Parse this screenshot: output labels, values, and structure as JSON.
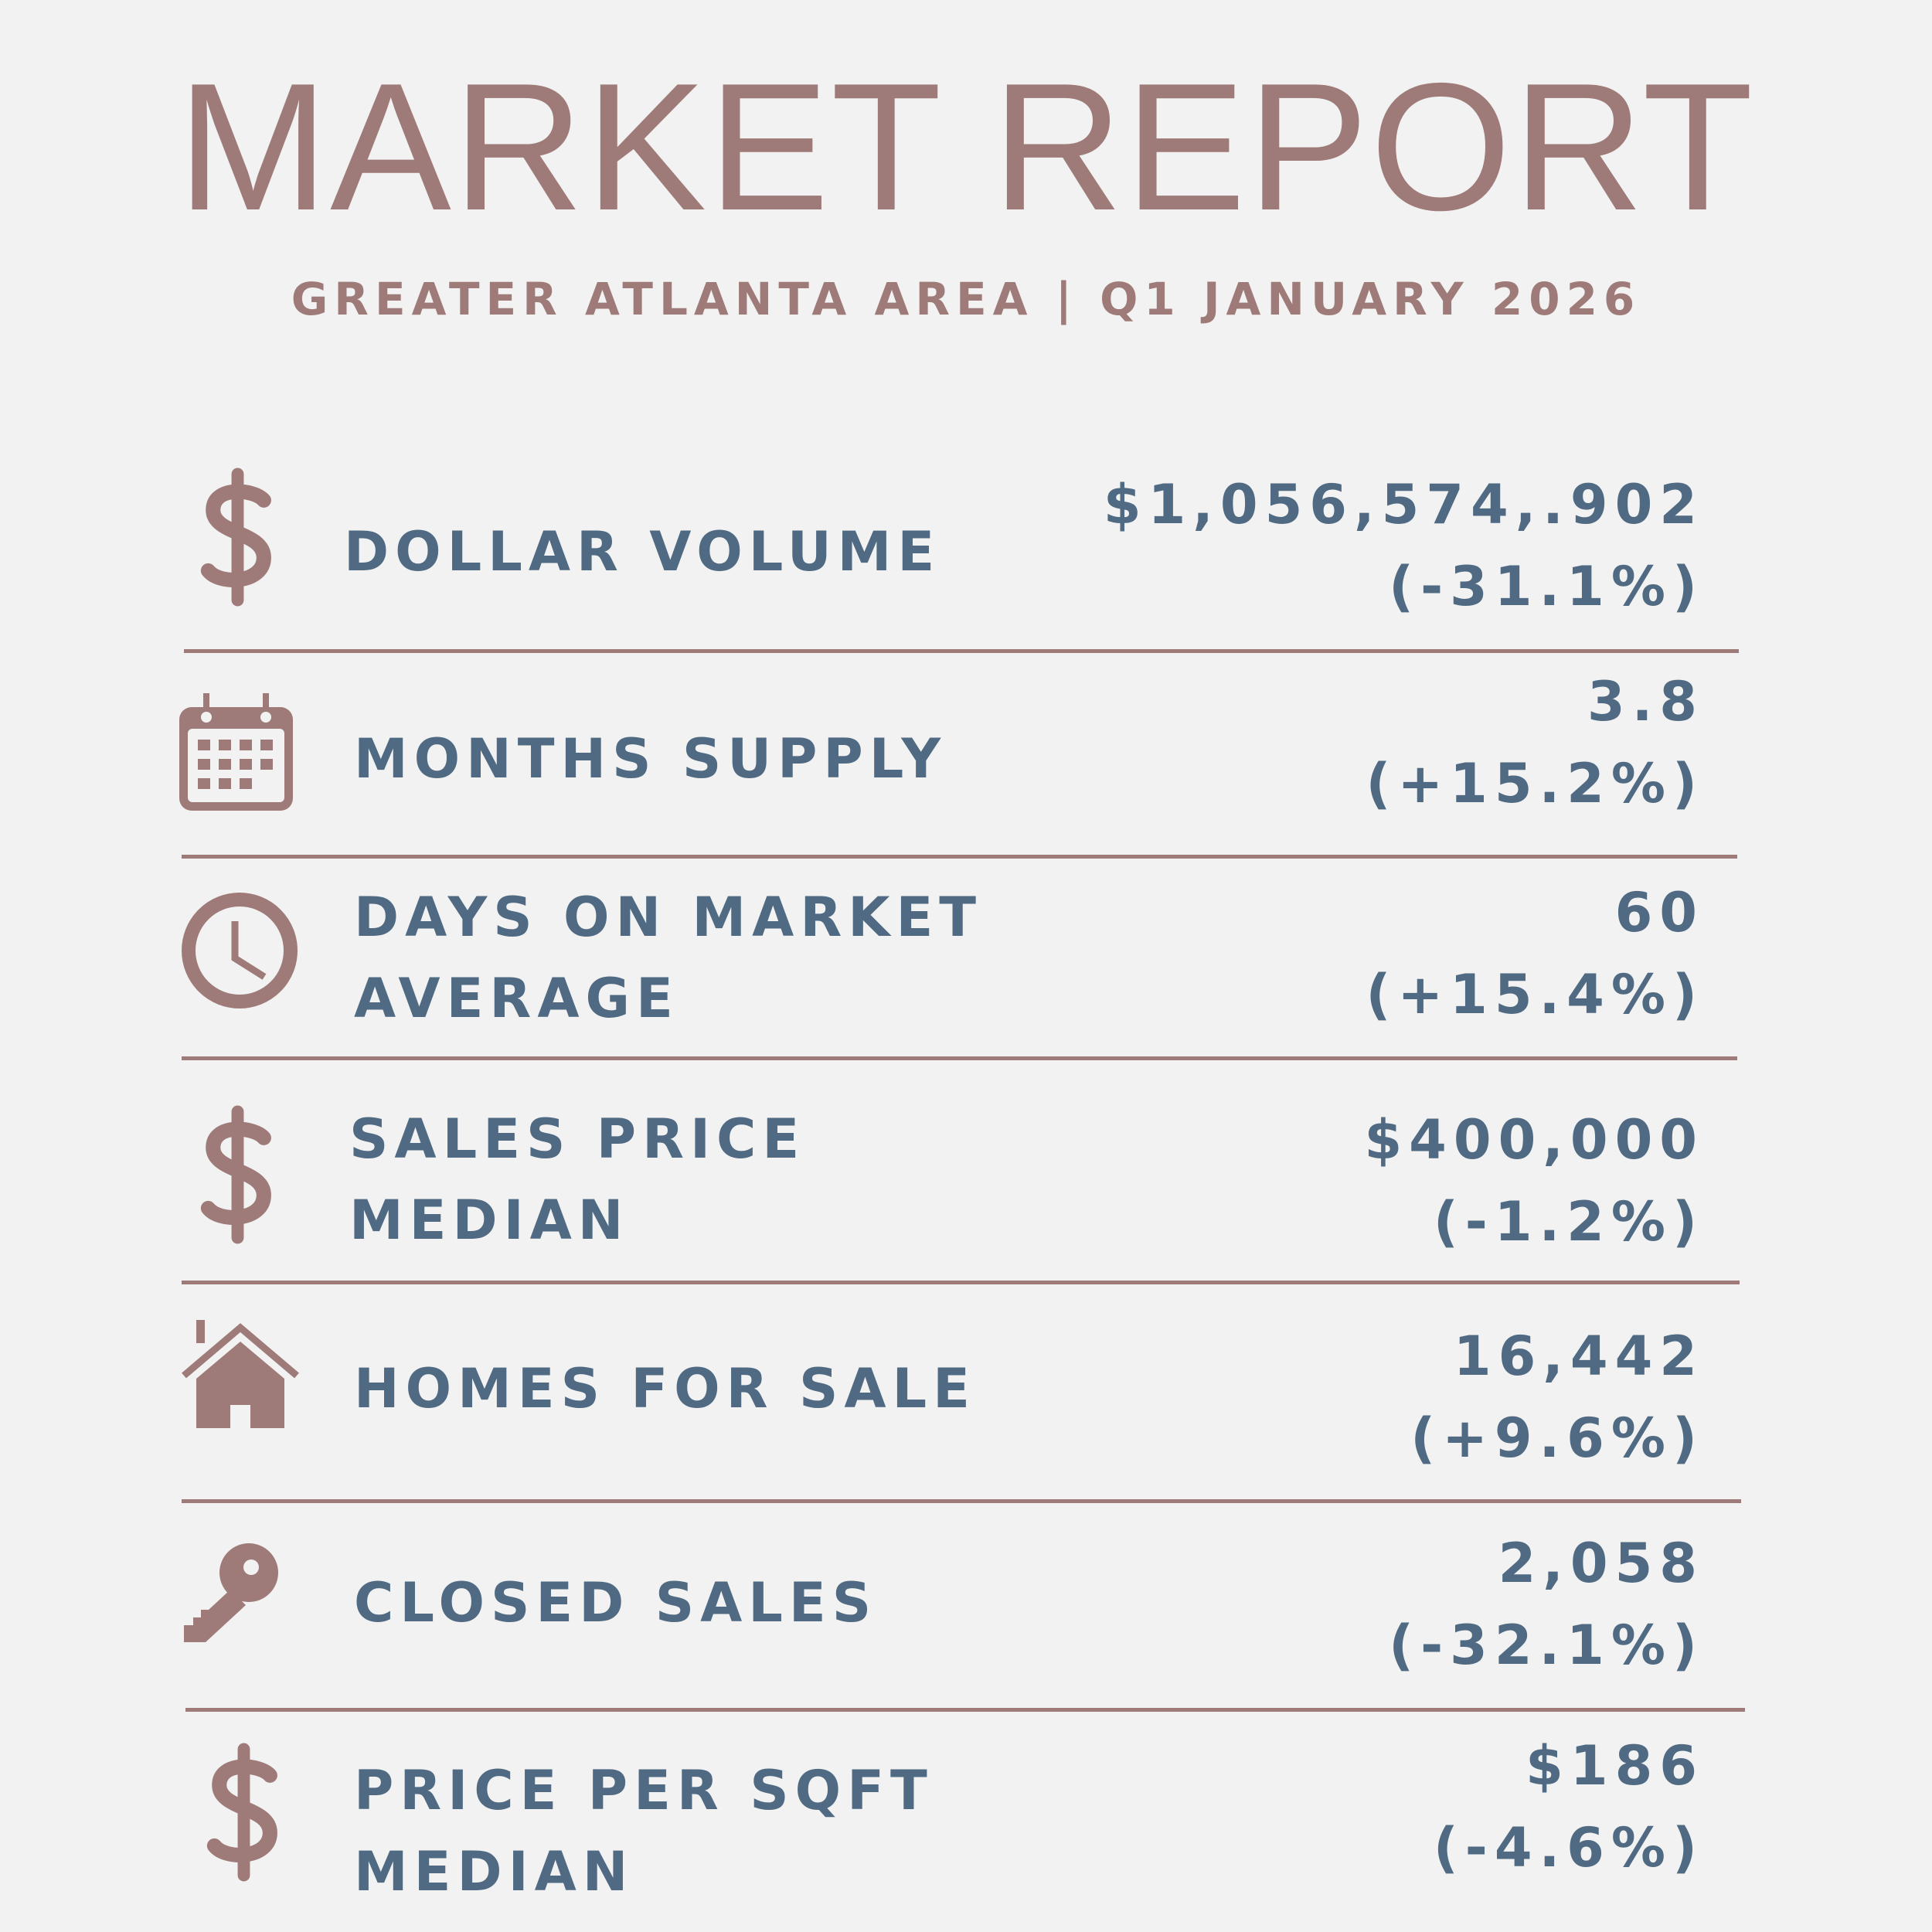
{
  "header": {
    "title": "MARKET REPORT",
    "subtitle": "GREATER ATLANTA AREA  |  Q1 JANUARY 2026"
  },
  "colors": {
    "accent": "#9e7b78",
    "text": "#4f6a82",
    "background": "#f2f2f2"
  },
  "metrics": [
    {
      "icon": "dollar-icon",
      "label": "DOLLAR VOLUME",
      "value": "$1,056,574,.902",
      "change": "(-31.1%)"
    },
    {
      "icon": "calendar-icon",
      "label": "MONTHS SUPPLY",
      "value": "3.8",
      "change": "(+15.2%)"
    },
    {
      "icon": "clock-icon",
      "label": "DAYS ON MARKET\nAVERAGE",
      "value": "60",
      "change": "(+15.4%)"
    },
    {
      "icon": "dollar-icon",
      "label": "SALES PRICE\nMEDIAN",
      "value": "$400,000",
      "change": "(-1.2%)"
    },
    {
      "icon": "house-icon",
      "label": "HOMES FOR SALE",
      "value": "16,442",
      "change": "(+9.6%)"
    },
    {
      "icon": "key-icon",
      "label": "CLOSED SALES",
      "value": "2,058",
      "change": "(-32.1%)"
    },
    {
      "icon": "dollar-icon",
      "label": "PRICE PER SQFT\nMEDIAN",
      "value": "$186",
      "change": "(-4.6%)"
    }
  ]
}
